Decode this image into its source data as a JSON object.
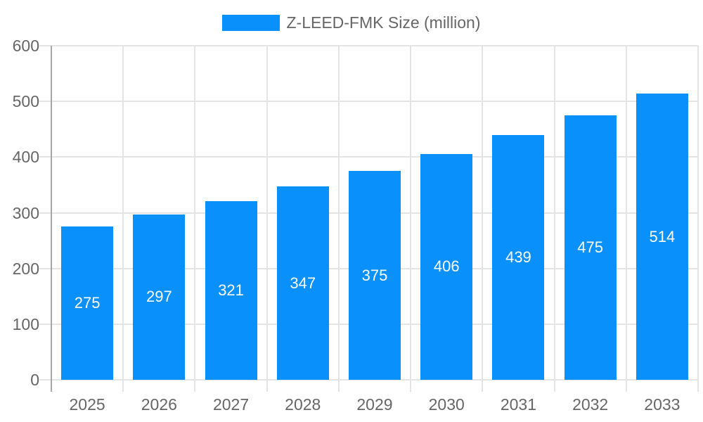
{
  "chart_data": {
    "type": "bar",
    "title": "Z-LEED-FMK Size (million)",
    "categories": [
      "2025",
      "2026",
      "2027",
      "2028",
      "2029",
      "2030",
      "2031",
      "2032",
      "2033"
    ],
    "values": [
      275,
      297,
      321,
      347,
      375,
      406,
      439,
      475,
      514
    ],
    "xlabel": "",
    "ylabel": "",
    "ylim": [
      0,
      600
    ],
    "yticks": [
      0,
      100,
      200,
      300,
      400,
      500,
      600
    ],
    "grid": true,
    "legend_position": "top-center",
    "value_labels": "inside-center",
    "colors": {
      "bar": "#0990fb",
      "value_label": "#ffffff",
      "grid": "#e4e4e4",
      "axis_line": "#a6a6a6",
      "tick_label": "#666666",
      "legend_text": "#666666"
    }
  }
}
